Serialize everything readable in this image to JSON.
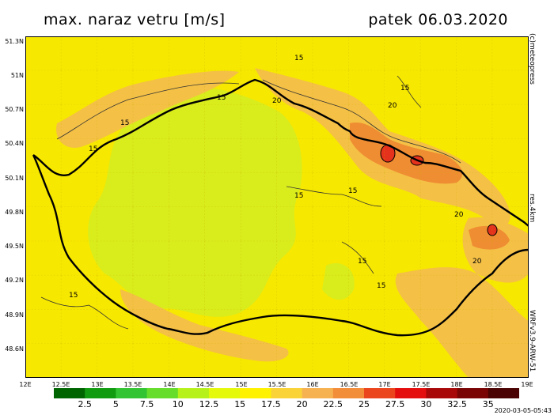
{
  "title_left": "max. naraz vetru [m/s]",
  "title_right": "patek 06.03.2020",
  "lat_labels": [
    "51.3N",
    "51N",
    "50.7N",
    "50.4N",
    "50.1N",
    "49.8N",
    "49.5N",
    "49.2N",
    "48.9N",
    "48.6N"
  ],
  "lon_labels": [
    "12E",
    "12.5E",
    "13E",
    "13.5E",
    "14E",
    "14.5E",
    "15E",
    "15.5E",
    "16E",
    "16.5E",
    "17E",
    "17.5E",
    "18E",
    "18.5E",
    "19E"
  ],
  "contour_labels": [
    "15",
    "15",
    "15",
    "15",
    "15",
    "15",
    "15",
    "15",
    "15",
    "15",
    "20",
    "20",
    "20",
    "20"
  ],
  "side_copyright": "(c)meteopress",
  "side_resolution": "res.4km",
  "side_model": "WRFv3.9-ARW-51",
  "legend_labels": [
    "2.5",
    "5",
    "7.5",
    "10",
    "12.5",
    "15",
    "17.5",
    "20",
    "22.5",
    "25",
    "27.5",
    "30",
    "32.5",
    "35"
  ],
  "legend_colors": [
    "#006400",
    "#119b11",
    "#33c433",
    "#66dd2b",
    "#b6f21a",
    "#e5f90b",
    "#fff200",
    "#f9d338",
    "#f6b251",
    "#f28d3a",
    "#ea451c",
    "#e40e0e",
    "#a80808",
    "#7a0404",
    "#4a0202"
  ],
  "timestamp": "2020-03-05-05:43"
}
